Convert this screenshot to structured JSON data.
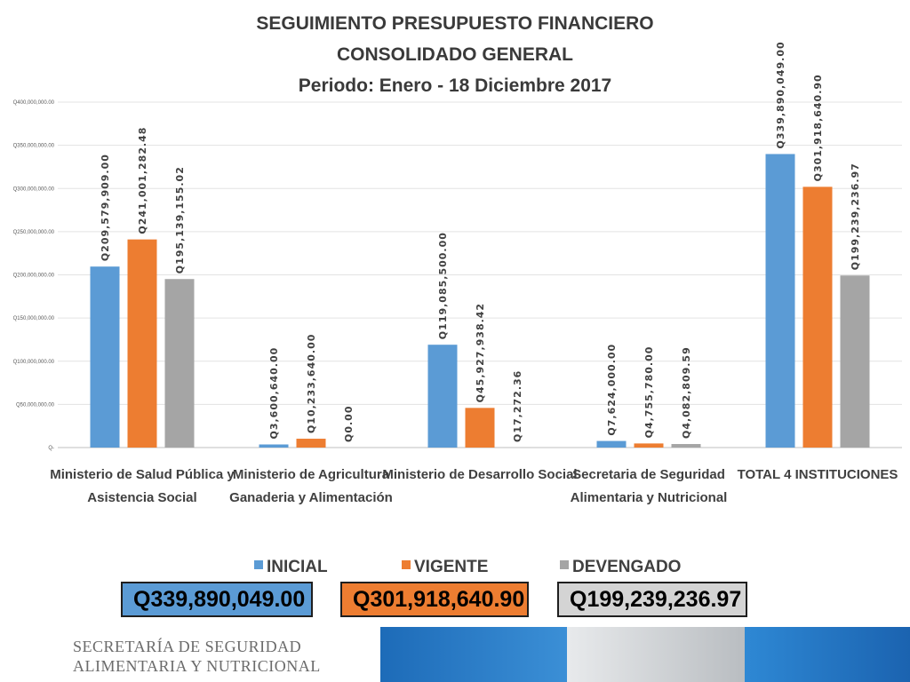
{
  "chart_data": {
    "type": "bar",
    "title_lines": [
      "SEGUIMIENTO PRESUPUESTO FINANCIERO",
      "CONSOLIDADO GENERAL",
      "Periodo: Enero - 18 Diciembre 2017"
    ],
    "categories": [
      [
        "Ministerio de Salud Pública y",
        "Asistencia Social"
      ],
      [
        "Ministerio de Agricultura",
        "Ganaderia y Alimentación"
      ],
      [
        "Ministerio de Desarrollo Social",
        ""
      ],
      [
        "Secretaria de Seguridad",
        "Alimentaria y Nutricional"
      ],
      [
        "TOTAL 4 INSTITUCIONES",
        ""
      ]
    ],
    "series": [
      {
        "name": "INICIAL",
        "color": "#5b9bd5",
        "values": [
          209579909.0,
          3600640.0,
          119085500.0,
          7624000.0,
          339890049.0
        ],
        "labels": [
          "Q209,579,909.00",
          "Q3,600,640.00",
          "Q119,085,500.00",
          "Q7,624,000.00",
          "Q339,890,049.00"
        ]
      },
      {
        "name": "VIGENTE",
        "color": "#ed7d31",
        "values": [
          241001282.48,
          10233640.0,
          45927938.42,
          4755780.0,
          301918640.9
        ],
        "labels": [
          "Q241,001,282.48",
          "Q10,233,640.00",
          "Q45,927,938.42",
          "Q4,755,780.00",
          "Q301,918,640.90"
        ]
      },
      {
        "name": "DEVENGADO",
        "color": "#a5a5a5",
        "values": [
          195139155.02,
          0.0,
          17272.36,
          4082809.59,
          199239236.97
        ],
        "labels": [
          "Q195,139,155.02",
          "Q0.00",
          "Q17,272.36",
          "Q4,082,809.59",
          "Q199,239,236.97"
        ]
      }
    ],
    "ylim": [
      0,
      400000000
    ],
    "yticks": [
      0,
      50000000,
      100000000,
      150000000,
      200000000,
      250000000,
      300000000,
      350000000,
      400000000
    ],
    "ytick_labels": [
      "Q-",
      "Q50,000,000.00",
      "Q100,000,000.00",
      "Q150,000,000.00",
      "Q200,000,000.00",
      "Q250,000,000.00",
      "Q300,000,000.00",
      "Q350,000,000.00",
      "Q400,000,000.00"
    ],
    "grid": true,
    "legend_position": "bottom"
  },
  "totals": {
    "inicial": {
      "currency": "Q",
      "amount": "339,890,049.00",
      "color": "#5b9bd5"
    },
    "vigente": {
      "currency": "Q",
      "amount": "301,918,640.90",
      "color": "#ed7d31"
    },
    "devengado": {
      "currency": "Q",
      "amount": "199,239,236.97",
      "color": "#d4d4d4"
    }
  },
  "footer": {
    "line1": "SECRETARÍA DE SEGURIDAD",
    "line2": "ALIMENTARIA Y NUTRICIONAL"
  }
}
